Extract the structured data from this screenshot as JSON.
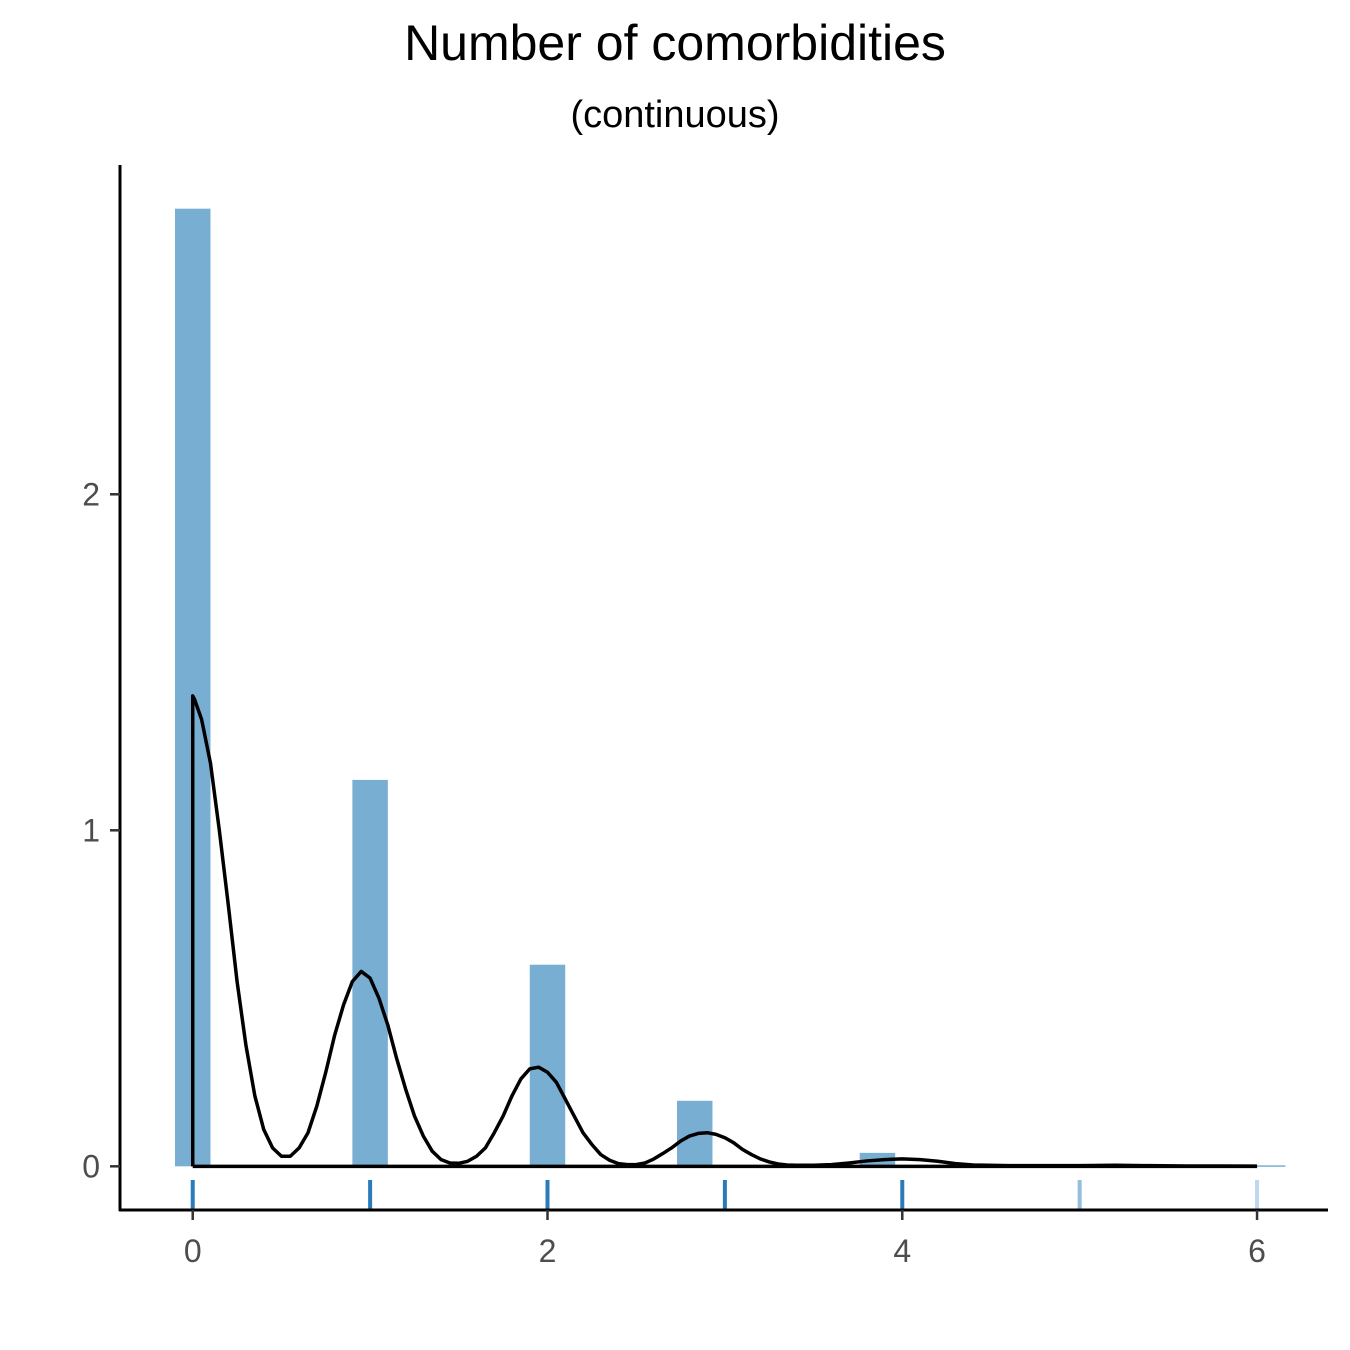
{
  "chart_data": {
    "type": "bar",
    "title": "Number of comorbidities",
    "subtitle": "(continuous)",
    "xlabel": "",
    "ylabel": "",
    "xlim": [
      -0.41,
      6.4
    ],
    "ylim": [
      -0.13,
      2.98
    ],
    "x_ticks": [
      0,
      2,
      4,
      6
    ],
    "y_ticks": [
      0,
      1,
      2
    ],
    "x_tick_labels": [
      "0",
      "2",
      "4",
      "6"
    ],
    "y_tick_labels": [
      "0",
      "1",
      "2"
    ],
    "grid": false,
    "histogram": {
      "bar_width": 0.2,
      "bars": [
        {
          "x": 0,
          "value": 2.85
        },
        {
          "x": 1,
          "value": 1.15
        },
        {
          "x": 2,
          "value": 0.6
        },
        {
          "x": 2.83,
          "value": 0.195
        },
        {
          "x": 3.86,
          "value": 0.04
        },
        {
          "x": 6.06,
          "value": 0.003
        }
      ],
      "color": "#79aed3"
    },
    "density": {
      "color": "#000000",
      "x": [
        0,
        0.01,
        0.05,
        0.1,
        0.15,
        0.2,
        0.25,
        0.3,
        0.35,
        0.4,
        0.45,
        0.5,
        0.55,
        0.6,
        0.65,
        0.7,
        0.75,
        0.8,
        0.85,
        0.9,
        0.95,
        1.0,
        1.05,
        1.1,
        1.15,
        1.2,
        1.25,
        1.3,
        1.35,
        1.4,
        1.45,
        1.5,
        1.55,
        1.6,
        1.65,
        1.7,
        1.75,
        1.8,
        1.85,
        1.9,
        1.95,
        2.0,
        2.05,
        2.1,
        2.15,
        2.2,
        2.25,
        2.3,
        2.35,
        2.4,
        2.45,
        2.5,
        2.55,
        2.6,
        2.65,
        2.7,
        2.75,
        2.8,
        2.85,
        2.9,
        2.95,
        3.0,
        3.05,
        3.1,
        3.15,
        3.2,
        3.25,
        3.3,
        3.35,
        3.4,
        3.5,
        3.6,
        3.7,
        3.8,
        3.9,
        4.0,
        4.1,
        4.2,
        4.3,
        4.4,
        4.6,
        4.8,
        5.0,
        5.2,
        5.4,
        5.6,
        5.8,
        6.0
      ],
      "y": [
        1.4,
        1.39,
        1.33,
        1.2,
        1.0,
        0.78,
        0.55,
        0.36,
        0.21,
        0.11,
        0.055,
        0.03,
        0.03,
        0.055,
        0.1,
        0.18,
        0.28,
        0.39,
        0.48,
        0.55,
        0.58,
        0.56,
        0.5,
        0.42,
        0.32,
        0.23,
        0.15,
        0.09,
        0.045,
        0.02,
        0.01,
        0.009,
        0.015,
        0.03,
        0.055,
        0.1,
        0.15,
        0.21,
        0.26,
        0.29,
        0.295,
        0.28,
        0.25,
        0.2,
        0.15,
        0.1,
        0.065,
        0.035,
        0.018,
        0.008,
        0.005,
        0.005,
        0.01,
        0.022,
        0.038,
        0.055,
        0.075,
        0.09,
        0.098,
        0.1,
        0.095,
        0.085,
        0.07,
        0.05,
        0.035,
        0.022,
        0.013,
        0.007,
        0.004,
        0.003,
        0.003,
        0.005,
        0.01,
        0.016,
        0.02,
        0.022,
        0.02,
        0.015,
        0.008,
        0.004,
        0.002,
        0.002,
        0.002,
        0.003,
        0.002,
        0.001,
        0.001,
        0.0005
      ],
      "baseline_from": 0,
      "baseline_to": 6
    },
    "rug": [
      {
        "x": 0,
        "opacity": 1.0
      },
      {
        "x": 1,
        "opacity": 1.0
      },
      {
        "x": 2,
        "opacity": 1.0
      },
      {
        "x": 3,
        "opacity": 1.0
      },
      {
        "x": 4,
        "opacity": 1.0
      },
      {
        "x": 5,
        "opacity": 0.5
      },
      {
        "x": 6,
        "opacity": 0.3
      }
    ],
    "rug_color": "#2b7bba"
  }
}
